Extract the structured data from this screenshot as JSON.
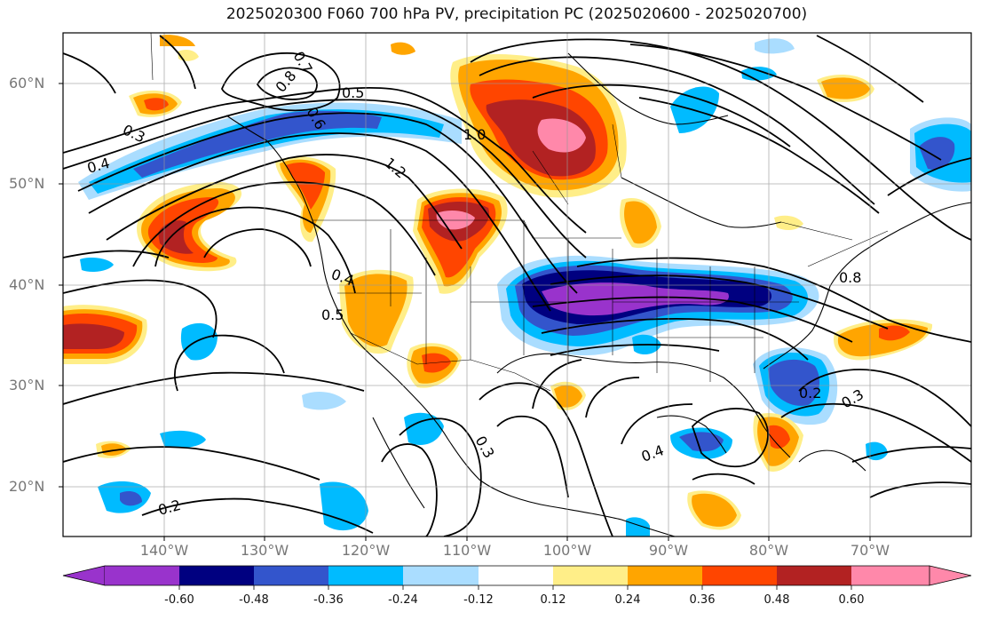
{
  "title": "2025020300 F060 700 hPa PV, precipitation PC (2025020600 - 2025020700)",
  "axes": {
    "lat_labels": [
      "60°N",
      "50°N",
      "40°N",
      "30°N",
      "20°N"
    ],
    "lon_labels": [
      "140°W",
      "130°W",
      "120°W",
      "110°W",
      "100°W",
      "90°W",
      "80°W",
      "70°W"
    ],
    "lat_range": [
      15,
      65
    ],
    "lon_range": [
      -150,
      -60
    ],
    "grid": true
  },
  "colorbar": {
    "ticks": [
      "-0.60",
      "-0.48",
      "-0.36",
      "-0.24",
      "-0.12",
      "0.12",
      "0.24",
      "0.36",
      "0.48",
      "0.60"
    ],
    "colors": [
      "#9933cc",
      "#000080",
      "#3355cc",
      "#00bbff",
      "#aaddff",
      "#ffffff",
      "#ffee88",
      "#ffa500",
      "#ff4500",
      "#b22222",
      "#ff88aa"
    ],
    "extend": "both"
  },
  "contour_labels": [
    "0.3",
    "0.4",
    "0.5",
    "0.6",
    "0.7",
    "0.8",
    "1.0",
    "1.2",
    "0.2",
    "0.4",
    "0.5",
    "0.3",
    "0.2",
    "0.4",
    "0.3",
    "0.8"
  ],
  "colors": {
    "neg_strong": "#9933cc",
    "neg_navy": "#000080",
    "neg_blue": "#3355cc",
    "neg_cyan": "#00bbff",
    "neg_light": "#aaddff",
    "pos_yellow": "#ffee88",
    "pos_orange": "#ffa500",
    "pos_red": "#ff4500",
    "pos_dark": "#b22222",
    "pos_pink": "#ff88aa"
  }
}
